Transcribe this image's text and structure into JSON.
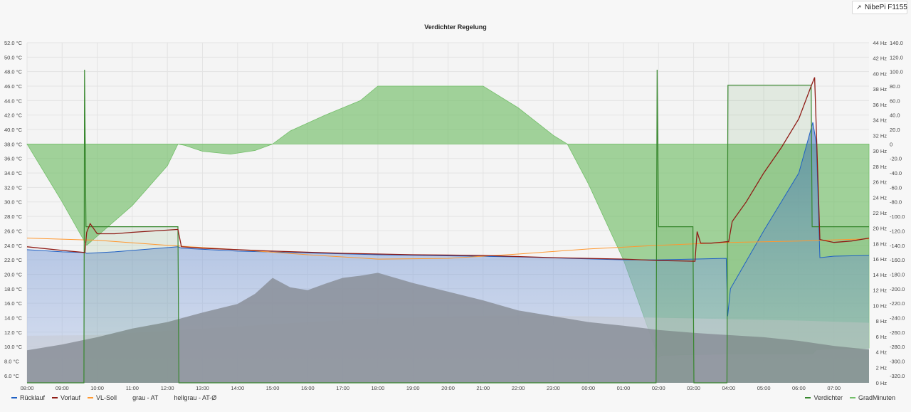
{
  "header": {
    "link_label": "NibePi F1155",
    "link_icon": "external-link-icon"
  },
  "chart_data": {
    "type": "line",
    "title": "Verdichter Regelung",
    "xlabel": "",
    "ylabel": "",
    "grid": true,
    "x_ticks": [
      "08:00",
      "09:00",
      "10:00",
      "11:00",
      "12:00",
      "13:00",
      "14:00",
      "15:00",
      "16:00",
      "17:00",
      "18:00",
      "19:00",
      "20:00",
      "21:00",
      "22:00",
      "23:00",
      "00:00",
      "01:00",
      "02:00",
      "03:00",
      "04:00",
      "05:00",
      "06:00",
      "07:00"
    ],
    "x_range_hours": [
      8.0,
      32.0
    ],
    "axes": {
      "left": {
        "unit": "°C",
        "range": [
          5.0,
          52.0
        ],
        "ticks": [
          "52.0 °C",
          "50.0 °C",
          "48.0 °C",
          "46.0 °C",
          "44.0 °C",
          "42.0 °C",
          "40.0 °C",
          "38.0 °C",
          "36.0 °C",
          "34.0 °C",
          "32.0 °C",
          "30.0 °C",
          "28.0 °C",
          "26.0 °C",
          "24.0 °C",
          "22.0 °C",
          "20.0 °C",
          "18.0 °C",
          "16.0 °C",
          "14.0 °C",
          "12.0 °C",
          "10.0 °C",
          "8.0 °C",
          "6.0 °C"
        ]
      },
      "right_hz": {
        "unit": "Hz",
        "range": [
          0,
          44
        ],
        "ticks": [
          "44 Hz",
          "42 Hz",
          "40 Hz",
          "38 Hz",
          "36 Hz",
          "34 Hz",
          "32 Hz",
          "30 Hz",
          "28 Hz",
          "26 Hz",
          "24 Hz",
          "22 Hz",
          "20 Hz",
          "18 Hz",
          "16 Hz",
          "14 Hz",
          "12 Hz",
          "10 Hz",
          "8 Hz",
          "6 Hz",
          "4 Hz",
          "2 Hz",
          "0 Hz"
        ]
      },
      "right_gm": {
        "unit": "",
        "range": [
          -330,
          140
        ],
        "ticks": [
          "140.0",
          "120.0",
          "100.0",
          "80.0",
          "60.0",
          "40.0",
          "20.0",
          "0",
          "-20.0",
          "-40.0",
          "-60.0",
          "-80.0",
          "-100.0",
          "-120.0",
          "-140.0",
          "-160.0",
          "-180.0",
          "-200.0",
          "-220.0",
          "-240.0",
          "-260.0",
          "-280.0",
          "-300.0",
          "-320.0"
        ]
      }
    },
    "series": [
      {
        "name": "Rücklauf",
        "axis": "left",
        "color": "#1f60c4",
        "style": "area-gradient",
        "x": [
          8.0,
          9.0,
          9.65,
          9.7,
          10.5,
          12.3,
          12.4,
          14.0,
          18.0,
          22.0,
          25.0,
          26.0,
          27.0,
          27.93,
          27.97,
          28.05,
          29.0,
          30.0,
          30.4,
          30.5,
          30.6,
          31.0,
          32.0
        ],
        "y": [
          23.4,
          23.1,
          23.0,
          22.9,
          23.1,
          23.8,
          23.6,
          23.2,
          22.7,
          22.4,
          22.0,
          22.0,
          22.1,
          22.2,
          14.2,
          18.0,
          26.0,
          34.0,
          41.0,
          38.0,
          22.3,
          22.5,
          22.6
        ]
      },
      {
        "name": "Vorlauf",
        "axis": "left",
        "color": "#8f1c16",
        "style": "line",
        "x": [
          8.0,
          9.0,
          9.65,
          9.7,
          9.8,
          10.0,
          10.5,
          11.0,
          12.3,
          12.4,
          13.0,
          15.0,
          17.0,
          19.0,
          21.0,
          23.0,
          25.0,
          26.0,
          27.04,
          27.1,
          27.2,
          27.5,
          27.95,
          28.0,
          28.1,
          28.5,
          29.0,
          29.5,
          30.0,
          30.35,
          30.45,
          30.6,
          31.0,
          31.5,
          32.0
        ],
        "y": [
          23.8,
          23.3,
          23.0,
          25.8,
          27.0,
          25.6,
          25.6,
          25.8,
          26.2,
          23.8,
          23.6,
          23.2,
          22.9,
          22.7,
          22.6,
          22.3,
          22.1,
          21.9,
          21.8,
          25.9,
          24.3,
          24.3,
          24.5,
          24.5,
          27.3,
          30.0,
          34.0,
          37.5,
          41.5,
          46.0,
          47.2,
          24.8,
          24.4,
          24.6,
          25.0
        ]
      },
      {
        "name": "VL-Soll",
        "axis": "left",
        "color": "#ff9830",
        "style": "line",
        "x": [
          8.0,
          10.0,
          12.0,
          14.0,
          16.0,
          18.0,
          20.0,
          22.0,
          24.0,
          26.0,
          28.0,
          30.0,
          32.0
        ],
        "y": [
          25.0,
          24.7,
          24.0,
          23.4,
          22.7,
          22.1,
          22.2,
          22.8,
          23.5,
          24.0,
          24.4,
          24.6,
          24.9
        ]
      },
      {
        "name": "grau - AT",
        "axis": "left",
        "color": "#8a8f99",
        "style": "area",
        "x": [
          8.0,
          9.0,
          10.0,
          11.0,
          12.0,
          13.0,
          14.0,
          14.5,
          15.0,
          15.5,
          16.0,
          16.5,
          17.0,
          17.5,
          18.0,
          19.0,
          20.0,
          21.0,
          22.0,
          23.0,
          24.0,
          25.0,
          26.0,
          27.0,
          28.0,
          29.0,
          30.0,
          31.0,
          32.0
        ],
        "y": [
          9.5,
          10.3,
          11.3,
          12.5,
          13.4,
          14.7,
          15.9,
          17.3,
          19.5,
          18.2,
          17.8,
          18.7,
          19.5,
          19.8,
          20.2,
          18.8,
          17.6,
          16.4,
          15.0,
          14.2,
          13.4,
          12.9,
          12.3,
          11.9,
          11.6,
          11.3,
          10.8,
          10.1,
          9.6
        ]
      },
      {
        "name": "hellgrau - AT-Ø",
        "axis": "left",
        "color": "#c7cbd1",
        "style": "area",
        "x": [
          8.0,
          10.0,
          12.0,
          14.0,
          16.0,
          18.0,
          20.0,
          22.0,
          24.0,
          26.0,
          28.0,
          30.0,
          32.0
        ],
        "y": [
          11.5,
          11.6,
          12.2,
          12.8,
          13.4,
          13.9,
          14.2,
          14.3,
          14.2,
          14.0,
          13.8,
          13.6,
          13.3
        ]
      },
      {
        "name": "Verdichter",
        "axis": "right_hz",
        "color": "#37872d",
        "style": "line",
        "x": [
          8.0,
          9.62,
          9.64,
          9.68,
          9.72,
          12.3,
          12.33,
          25.93,
          25.96,
          26.0,
          26.04,
          26.98,
          27.01,
          27.95,
          27.98,
          30.35,
          30.38,
          32.0
        ],
        "y": [
          0,
          0,
          40.5,
          20.2,
          20.2,
          20.2,
          0,
          0,
          40.5,
          20.2,
          20.2,
          20.2,
          0,
          0,
          38.5,
          38.5,
          20.2,
          20.2
        ]
      },
      {
        "name": "GradMinuten",
        "axis": "right_gm",
        "color": "#73bf69",
        "style": "area-zero",
        "x": [
          8.0,
          9.0,
          9.7,
          11.0,
          12.0,
          12.3,
          12.5,
          13.0,
          13.8,
          14.5,
          15.0,
          15.5,
          16.5,
          17.5,
          18.0,
          19.0,
          20.0,
          21.0,
          22.0,
          23.0,
          23.4,
          24.0,
          25.0,
          26.0,
          26.1,
          28.0,
          30.0,
          30.4,
          30.5,
          31.0,
          32.0
        ],
        "y": [
          0,
          -80,
          -140,
          -85,
          -30,
          0,
          -2,
          -10,
          -14,
          -9,
          0,
          18,
          40,
          60,
          80,
          80,
          80,
          80,
          50,
          12,
          0,
          -55,
          -160,
          -295,
          -292,
          -290,
          -290,
          -290,
          -284,
          -283,
          -282
        ]
      }
    ],
    "legend_left": [
      "Rücklauf",
      "Vorlauf",
      "VL-Soll",
      "grau - AT",
      "hellgrau - AT-Ø"
    ],
    "legend_right": [
      "Verdichter",
      "GradMinuten"
    ],
    "legend_placement": "bottom"
  }
}
